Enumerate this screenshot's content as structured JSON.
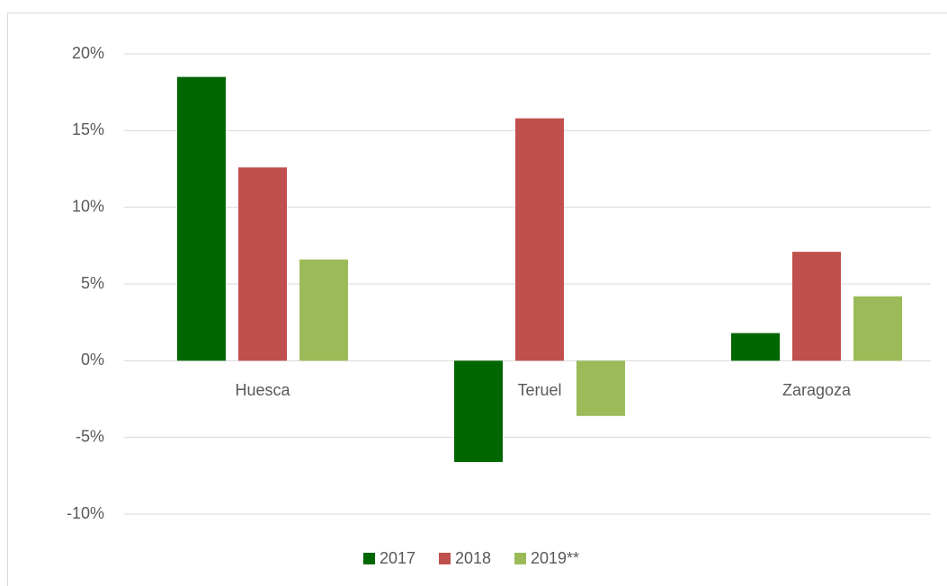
{
  "chart_data": {
    "type": "bar",
    "categories": [
      "Huesca",
      "Teruel",
      "Zaragoza"
    ],
    "series": [
      {
        "name": "2017",
        "color": "#006600",
        "values": [
          18.5,
          -6.6,
          1.8
        ]
      },
      {
        "name": "2018",
        "color": "#c0504d",
        "values": [
          12.6,
          15.8,
          7.1
        ]
      },
      {
        "name": "2019**",
        "color": "#9bbb59",
        "values": [
          6.6,
          -3.6,
          4.2
        ]
      }
    ],
    "ylim": [
      -10,
      20
    ],
    "yticks": [
      {
        "value": -10,
        "label": "-10%"
      },
      {
        "value": -5,
        "label": "-5%"
      },
      {
        "value": 0,
        "label": "0%"
      },
      {
        "value": 5,
        "label": "5%"
      },
      {
        "value": 10,
        "label": "10%"
      },
      {
        "value": 15,
        "label": "15%"
      },
      {
        "value": 20,
        "label": "20%"
      }
    ],
    "grid": true,
    "legend": "bottom"
  }
}
